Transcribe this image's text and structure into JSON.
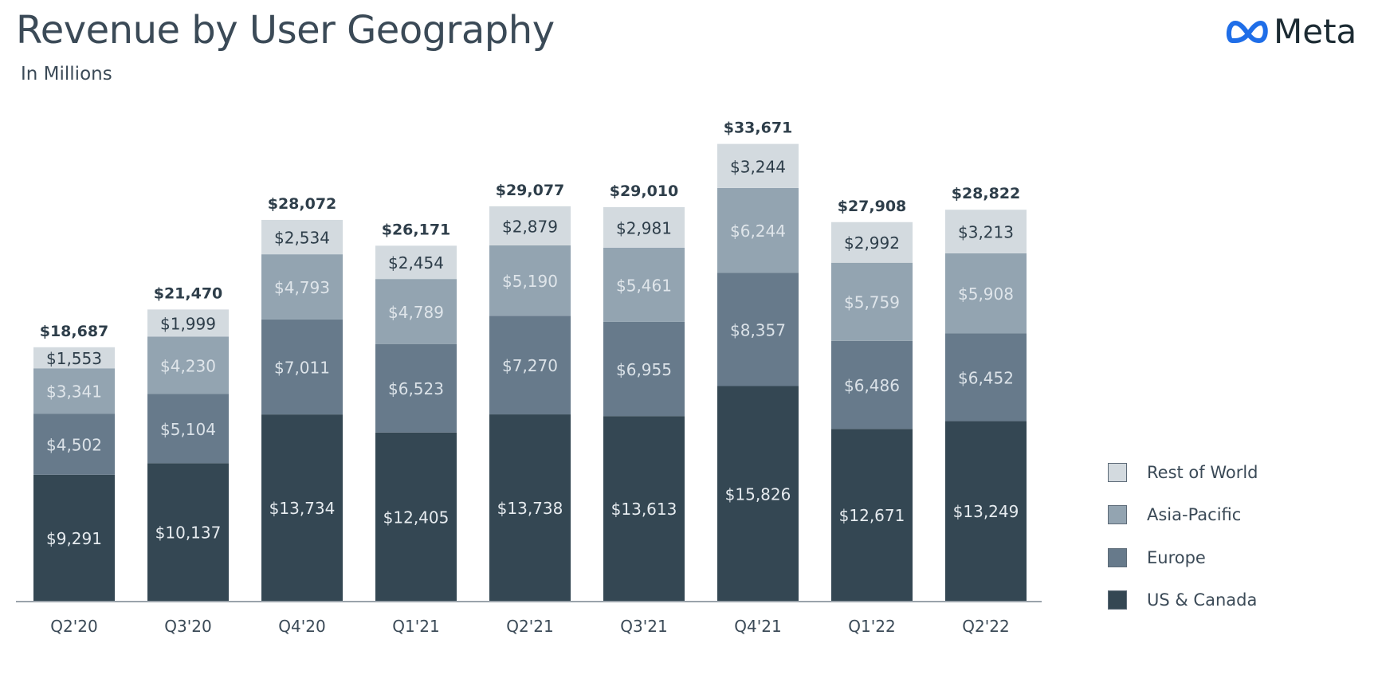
{
  "header": {
    "title": "Revenue by User Geography",
    "subtitle": "In Millions",
    "logo_text": "Meta"
  },
  "colors": {
    "logo_blue": "#0668e1",
    "title_text": "#3b4a57",
    "axis": "#9aa3ab"
  },
  "chart_data": {
    "type": "bar",
    "stacked": true,
    "title": "Revenue by User Geography",
    "subtitle": "In Millions",
    "xlabel": "",
    "ylabel": "",
    "ylim": [
      0,
      35000
    ],
    "grid": false,
    "legend_position": "right",
    "categories": [
      "Q2'20",
      "Q3'20",
      "Q4'20",
      "Q1'21",
      "Q2'21",
      "Q3'21",
      "Q4'21",
      "Q1'22",
      "Q2'22"
    ],
    "series": [
      {
        "name": "US & Canada",
        "color": "#344753",
        "label_color": "#e6ebef",
        "values": [
          9291,
          10137,
          13734,
          12405,
          13738,
          13613,
          15826,
          12671,
          13249
        ],
        "labels": [
          "$9,291",
          "$10,137",
          "$13,734",
          "$12,405",
          "$13,738",
          "$13,613",
          "$15,826",
          "$12,671",
          "$13,249"
        ]
      },
      {
        "name": "Europe",
        "color": "#677a8b",
        "label_color": "#dbe2e8",
        "values": [
          4502,
          5104,
          7011,
          6523,
          7270,
          6955,
          8357,
          6486,
          6452
        ],
        "labels": [
          "$4,502",
          "$5,104",
          "$7,011",
          "$6,523",
          "$7,270",
          "$6,955",
          "$8,357",
          "$6,486",
          "$6,452"
        ]
      },
      {
        "name": "Asia-Pacific",
        "color": "#93a4b1",
        "label_color": "#dfe5ea",
        "values": [
          3341,
          4230,
          4793,
          4789,
          5190,
          5461,
          6244,
          5759,
          5908
        ],
        "labels": [
          "$3,341",
          "$4,230",
          "$4,793",
          "$4,789",
          "$5,190",
          "$5,461",
          "$6,244",
          "$5,759",
          "$5,908"
        ]
      },
      {
        "name": "Rest of World",
        "color": "#d3dadf",
        "label_color": "#2e3e4a",
        "values": [
          1553,
          1999,
          2534,
          2454,
          2879,
          2981,
          3244,
          2992,
          3213
        ],
        "labels": [
          "$1,553",
          "$1,999",
          "$2,534",
          "$2,454",
          "$2,879",
          "$2,981",
          "$3,244",
          "$2,992",
          "$3,213"
        ]
      }
    ],
    "totals": [
      18687,
      21470,
      28072,
      26171,
      29077,
      29010,
      33671,
      27908,
      28822
    ],
    "total_labels": [
      "$18,687",
      "$21,470",
      "$28,072",
      "$26,171",
      "$29,077",
      "$29,010",
      "$33,671",
      "$27,908",
      "$28,822"
    ],
    "legend": [
      "Rest of World",
      "Asia-Pacific",
      "Europe",
      "US & Canada"
    ]
  }
}
